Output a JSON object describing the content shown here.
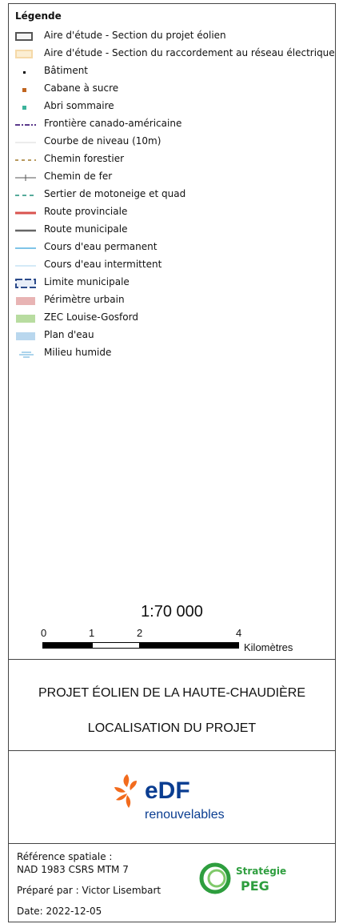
{
  "legend": {
    "title": "Légende",
    "items": [
      {
        "label": "Aire d'étude - Section du projet éolien",
        "icon": "study-area-wind-icon",
        "color": "#555555"
      },
      {
        "label": "Aire d'étude - Section du raccordement au réseau électrique",
        "icon": "study-area-grid-icon",
        "color": "#f5d9a8"
      },
      {
        "label": "Bâtiment",
        "icon": "building-icon",
        "color": "#111111"
      },
      {
        "label": "Cabane à sucre",
        "icon": "sugar-shack-icon",
        "color": "#c0651f"
      },
      {
        "label": "Abri sommaire",
        "icon": "shelter-icon",
        "color": "#3cb39b"
      },
      {
        "label": "Frontière canado-américaine",
        "icon": "border-line-icon",
        "color": "#5b3a8c"
      },
      {
        "label": "Courbe de niveau (10m)",
        "icon": "contour-line-icon",
        "color": "#d8d8d8"
      },
      {
        "label": "Chemin forestier",
        "icon": "forest-road-icon",
        "color": "#a0782a"
      },
      {
        "label": "Chemin de fer",
        "icon": "railway-icon",
        "color": "#555555"
      },
      {
        "label": "Sertier de motoneige et quad",
        "icon": "snowmobile-trail-icon",
        "color": "#1f8f7a"
      },
      {
        "label": "Route provinciale",
        "icon": "provincial-road-icon",
        "color": "#d9534f"
      },
      {
        "label": "Route municipale",
        "icon": "municipal-road-icon",
        "color": "#666666"
      },
      {
        "label": "Cours d'eau permanent",
        "icon": "permanent-stream-icon",
        "color": "#7fc4e8"
      },
      {
        "label": "Cours d'eau intermittent",
        "icon": "intermittent-stream-icon",
        "color": "#a9d6ef"
      },
      {
        "label": "Limite municipale",
        "icon": "municipal-limit-icon",
        "color": "#2b4a8a"
      },
      {
        "label": "Périmètre urbain",
        "icon": "urban-perimeter-icon",
        "color": "#e8b4b4"
      },
      {
        "label": "ZEC Louise-Gosford",
        "icon": "zec-area-icon",
        "color": "#b8dca0"
      },
      {
        "label": "Plan d'eau",
        "icon": "water-body-icon",
        "color": "#b9d7ee"
      },
      {
        "label": "Milieu humide",
        "icon": "wetland-icon",
        "color": "#5aa8d8"
      }
    ]
  },
  "scale": {
    "ratio": "1:70 000",
    "ticks": [
      "0",
      "1",
      "2",
      "4"
    ],
    "unit": "Kilomètres"
  },
  "title": {
    "line1": "PROJET ÉOLIEN DE LA HAUTE-CHAUDIÈRE",
    "line2": "LOCALISATION DU PROJET"
  },
  "logo": {
    "brand": "eDF",
    "sub": "renouvelables",
    "brand_color": "#0a3d91",
    "accent_color": "#f26b1d"
  },
  "reference": {
    "label": "Référence spatiale :",
    "system": "NAD 1983 CSRS MTM 7",
    "prepared": "Préparé par : Victor Lisembart",
    "date": "Date: 2022-12-05"
  },
  "peg_logo": {
    "line1": "Stratégie",
    "line2": "PEG",
    "color": "#2e9e3e"
  }
}
